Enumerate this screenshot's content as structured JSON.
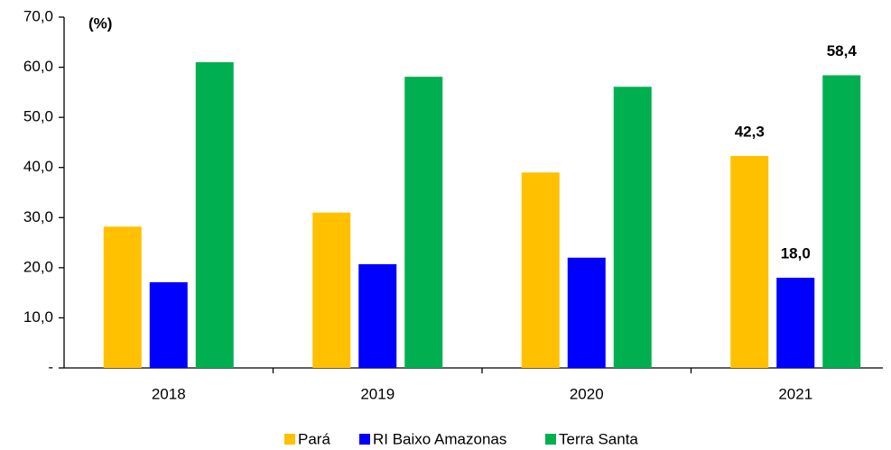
{
  "chart_data": {
    "type": "bar",
    "annotations": [
      "(%)"
    ],
    "categories": [
      "2018",
      "2019",
      "2020",
      "2021"
    ],
    "series": [
      {
        "name": "Pará",
        "color": "#FFC000",
        "values": [
          28.2,
          31.0,
          39.0,
          42.3
        ],
        "value_labels": [
          null,
          null,
          null,
          "42,3"
        ]
      },
      {
        "name": "RI Baixo Amazonas",
        "color": "#0000FF",
        "values": [
          17.1,
          20.7,
          22.0,
          18.0
        ],
        "value_labels": [
          null,
          null,
          null,
          "18,0"
        ]
      },
      {
        "name": "Terra Santa",
        "color": "#00B050",
        "values": [
          61.0,
          58.1,
          56.1,
          58.4
        ],
        "value_labels": [
          null,
          null,
          null,
          "58,4"
        ]
      }
    ],
    "ylim": [
      0,
      70
    ],
    "yticks": [
      {
        "value": 0,
        "label": "-"
      },
      {
        "value": 10,
        "label": "10,0"
      },
      {
        "value": 20,
        "label": "20,0"
      },
      {
        "value": 30,
        "label": "30,0"
      },
      {
        "value": 40,
        "label": "40,0"
      },
      {
        "value": 50,
        "label": "50,0"
      },
      {
        "value": 60,
        "label": "60,0"
      },
      {
        "value": 70,
        "label": "70,0"
      }
    ],
    "grid": false,
    "legend": "bottom"
  }
}
